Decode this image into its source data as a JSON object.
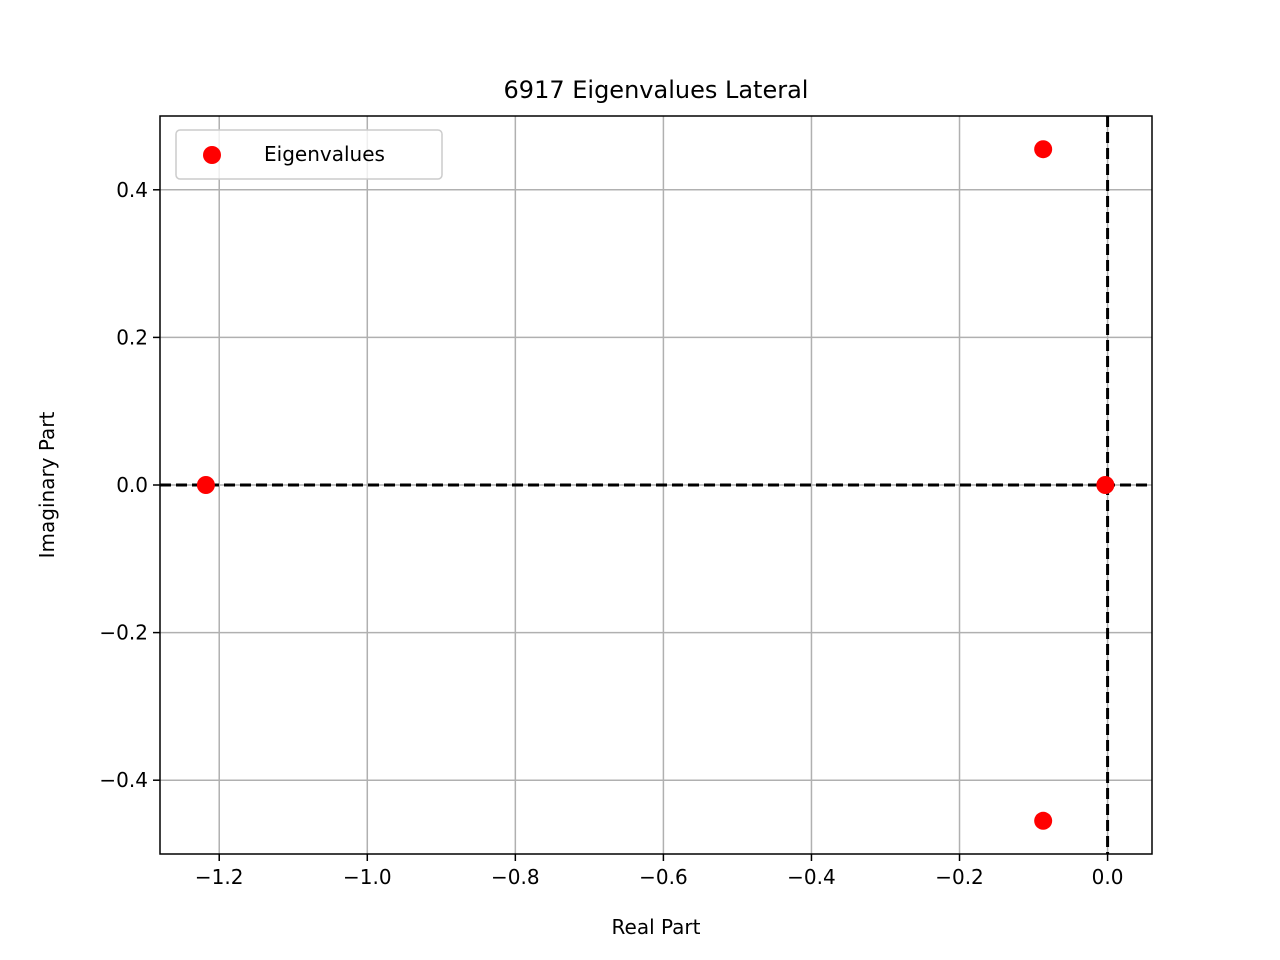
{
  "chart_data": {
    "type": "scatter",
    "title": "6917 Eigenvalues Lateral",
    "xlabel": "Real Part",
    "ylabel": "Imaginary Part",
    "xlim": [
      -1.28,
      0.06
    ],
    "ylim": [
      -0.5,
      0.5
    ],
    "x_ticks": [
      -1.2,
      -1.0,
      -0.8,
      -0.6,
      -0.4,
      -0.2,
      0.0
    ],
    "x_tick_labels": [
      "−1.2",
      "−1.0",
      "−0.8",
      "−0.6",
      "−0.4",
      "−0.2",
      "0.0"
    ],
    "y_ticks": [
      0.4,
      0.2,
      0.0,
      -0.2,
      -0.4
    ],
    "y_tick_labels": [
      "0.4",
      "0.2",
      "0.0",
      "−0.2",
      "−0.4"
    ],
    "grid": true,
    "legend_position": "top-left",
    "reference_lines": [
      "x = 0 (dashed)",
      "y = 0 (dashed)"
    ],
    "series": [
      {
        "name": "Eigenvalues",
        "color": "#ff0000",
        "points": [
          {
            "x": -1.218,
            "y": 0.0
          },
          {
            "x": -0.087,
            "y": 0.455
          },
          {
            "x": -0.087,
            "y": -0.455
          },
          {
            "x": -0.003,
            "y": 0.0
          }
        ]
      }
    ]
  }
}
